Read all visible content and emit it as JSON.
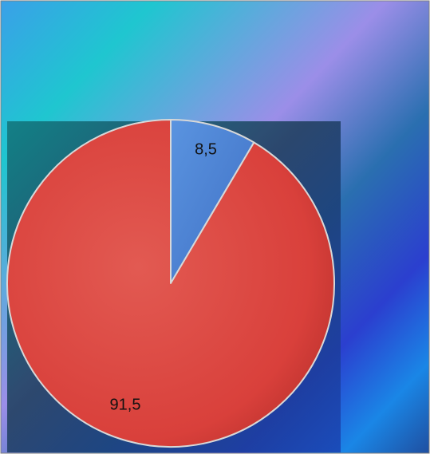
{
  "chart_data": {
    "type": "pie",
    "values": [
      8.5,
      91.5
    ],
    "labels": [
      "8,5",
      "91,5"
    ],
    "slice_colors": [
      "#4a7fd0",
      "#d9403b"
    ],
    "title": "",
    "legend": "none"
  },
  "colors": {
    "background_top_left": "#3aa0e8",
    "background_cyan": "#1fc6d0",
    "background_violet": "#9b8ee8",
    "background_blue": "#1a5fd6",
    "inner_plot_area": "#1c4f72",
    "slice_outline": "#d8d8d8",
    "frame_border": "#7f7f7f"
  }
}
